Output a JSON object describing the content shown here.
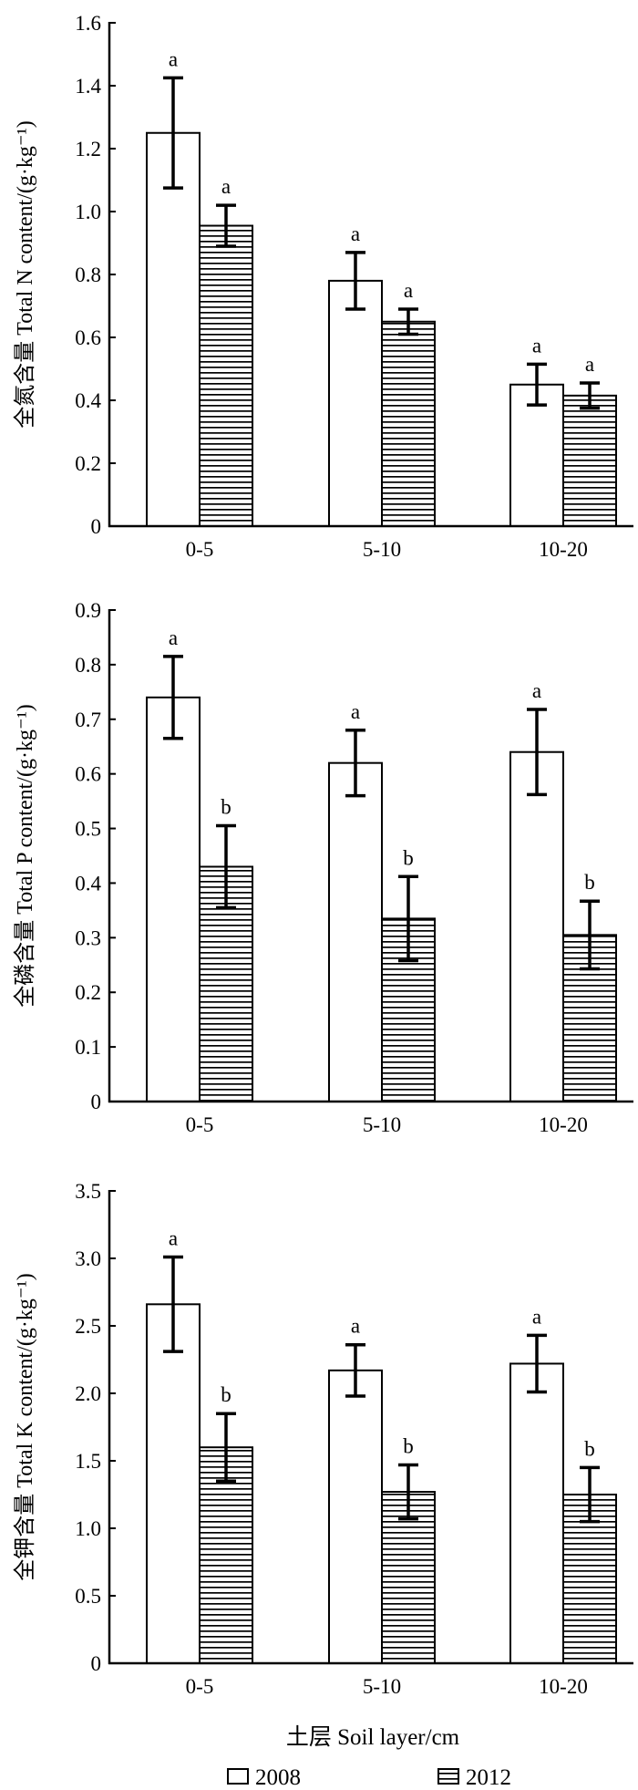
{
  "figure": {
    "xlabel": "土层 Soil layer/cm",
    "legend": [
      {
        "name": "2008",
        "fill": "plain"
      },
      {
        "name": "2012",
        "fill": "horizontal-stripes"
      }
    ]
  },
  "chart_data": [
    {
      "type": "bar",
      "title": "",
      "ylabel": "全氮含量 Total N content/(g·kg⁻¹)",
      "ylim": [
        0,
        1.6
      ],
      "yticks": [
        "0",
        "0.2",
        "0.4",
        "0.6",
        "0.8",
        "1.0",
        "1.2",
        "1.4",
        "1.6"
      ],
      "categories": [
        "0-5",
        "5-10",
        "10-20"
      ],
      "series": [
        {
          "name": "2008",
          "values": [
            1.25,
            0.78,
            0.45
          ],
          "errors": [
            0.175,
            0.09,
            0.065
          ],
          "sig": [
            "a",
            "a",
            "a"
          ]
        },
        {
          "name": "2012",
          "values": [
            0.955,
            0.65,
            0.415
          ],
          "errors": [
            0.065,
            0.04,
            0.04
          ],
          "sig": [
            "a",
            "a",
            "a"
          ]
        }
      ]
    },
    {
      "type": "bar",
      "title": "",
      "ylabel": "全磷含量 Total P content/(g·kg⁻¹)",
      "ylim": [
        0,
        0.9
      ],
      "yticks": [
        "0",
        "0.1",
        "0.2",
        "0.3",
        "0.4",
        "0.5",
        "0.6",
        "0.7",
        "0.8",
        "0.9"
      ],
      "categories": [
        "0-5",
        "5-10",
        "10-20"
      ],
      "series": [
        {
          "name": "2008",
          "values": [
            0.74,
            0.62,
            0.64
          ],
          "errors": [
            0.075,
            0.06,
            0.078
          ],
          "sig": [
            "a",
            "a",
            "a"
          ]
        },
        {
          "name": "2012",
          "values": [
            0.43,
            0.335,
            0.305
          ],
          "errors": [
            0.075,
            0.077,
            0.062
          ],
          "sig": [
            "b",
            "b",
            "b"
          ]
        }
      ]
    },
    {
      "type": "bar",
      "title": "",
      "ylabel": "全钾含量 Total K content/(g·kg⁻¹)",
      "ylim": [
        0,
        3.5
      ],
      "yticks": [
        "0",
        "0.5",
        "1.0",
        "1.5",
        "2.0",
        "2.5",
        "3.0",
        "3.5"
      ],
      "categories": [
        "0-5",
        "5-10",
        "10-20"
      ],
      "series": [
        {
          "name": "2008",
          "values": [
            2.66,
            2.17,
            2.22
          ],
          "errors": [
            0.35,
            0.19,
            0.21
          ],
          "sig": [
            "a",
            "a",
            "a"
          ]
        },
        {
          "name": "2012",
          "values": [
            1.6,
            1.27,
            1.25
          ],
          "errors": [
            0.25,
            0.2,
            0.2
          ],
          "sig": [
            "b",
            "b",
            "b"
          ]
        }
      ]
    }
  ]
}
